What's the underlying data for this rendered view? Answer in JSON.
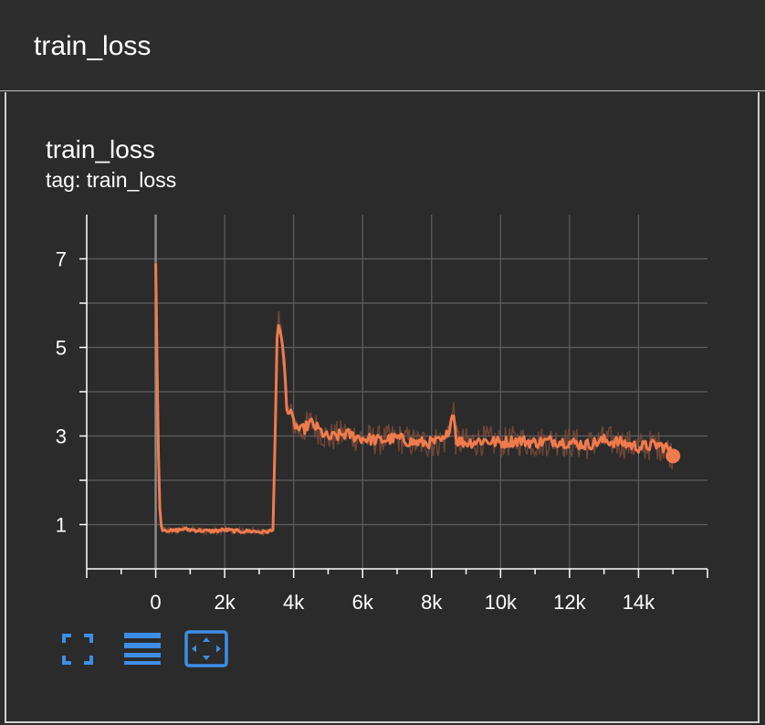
{
  "header": {
    "title": "train_loss"
  },
  "card": {
    "title": "train_loss",
    "tag": "tag: train_loss"
  },
  "colors": {
    "series": "#f07b4d",
    "series_raw": "#7a4a3a",
    "grid": "#5f5f5f",
    "zero_line": "#8a8a8a",
    "toolbar": "#3d8ee8"
  },
  "toolbar": {
    "icons": [
      "fullscreen-icon",
      "toggle-log-scale-icon",
      "fit-domain-icon"
    ]
  },
  "chart_data": {
    "type": "line",
    "title": "train_loss",
    "xlabel": "",
    "ylabel": "",
    "xlim": [
      -2000,
      16000
    ],
    "ylim": [
      0,
      8
    ],
    "grid": true,
    "x_ticks": [
      0,
      2000,
      4000,
      6000,
      8000,
      10000,
      12000,
      14000
    ],
    "x_tick_labels": [
      "0",
      "2k",
      "4k",
      "6k",
      "8k",
      "10k",
      "12k",
      "14k"
    ],
    "y_ticks": [
      1,
      3,
      5,
      7
    ],
    "y_tick_labels": [
      "1",
      "3",
      "5",
      "7"
    ],
    "series": [
      {
        "smoothed": true,
        "x": [
          0,
          50,
          100,
          150,
          200,
          300,
          500,
          800,
          1200,
          1600,
          2000,
          2400,
          2800,
          3100,
          3400,
          3500,
          3520,
          3560,
          3600,
          3650,
          3700,
          3750,
          3800,
          3900,
          4000,
          4200,
          4500,
          5000,
          5500,
          6000,
          6500,
          7000,
          7500,
          8000,
          8400,
          8650,
          8700,
          9000,
          9500,
          10000,
          10500,
          11000,
          11500,
          12000,
          12500,
          13000,
          13500,
          14000,
          14500,
          14800,
          15000
        ],
        "y": [
          6.9,
          4.0,
          1.6,
          1.0,
          0.9,
          0.88,
          0.85,
          0.9,
          0.87,
          0.85,
          0.88,
          0.85,
          0.85,
          0.83,
          0.86,
          4.3,
          5.2,
          5.5,
          5.4,
          5.2,
          4.9,
          4.4,
          3.6,
          3.5,
          3.3,
          3.1,
          3.3,
          2.95,
          3.05,
          2.95,
          2.9,
          2.95,
          2.85,
          2.85,
          2.9,
          3.6,
          2.9,
          2.85,
          2.9,
          2.85,
          2.9,
          2.85,
          2.9,
          2.85,
          2.8,
          2.9,
          2.85,
          2.75,
          2.8,
          2.75,
          2.55
        ]
      }
    ]
  }
}
